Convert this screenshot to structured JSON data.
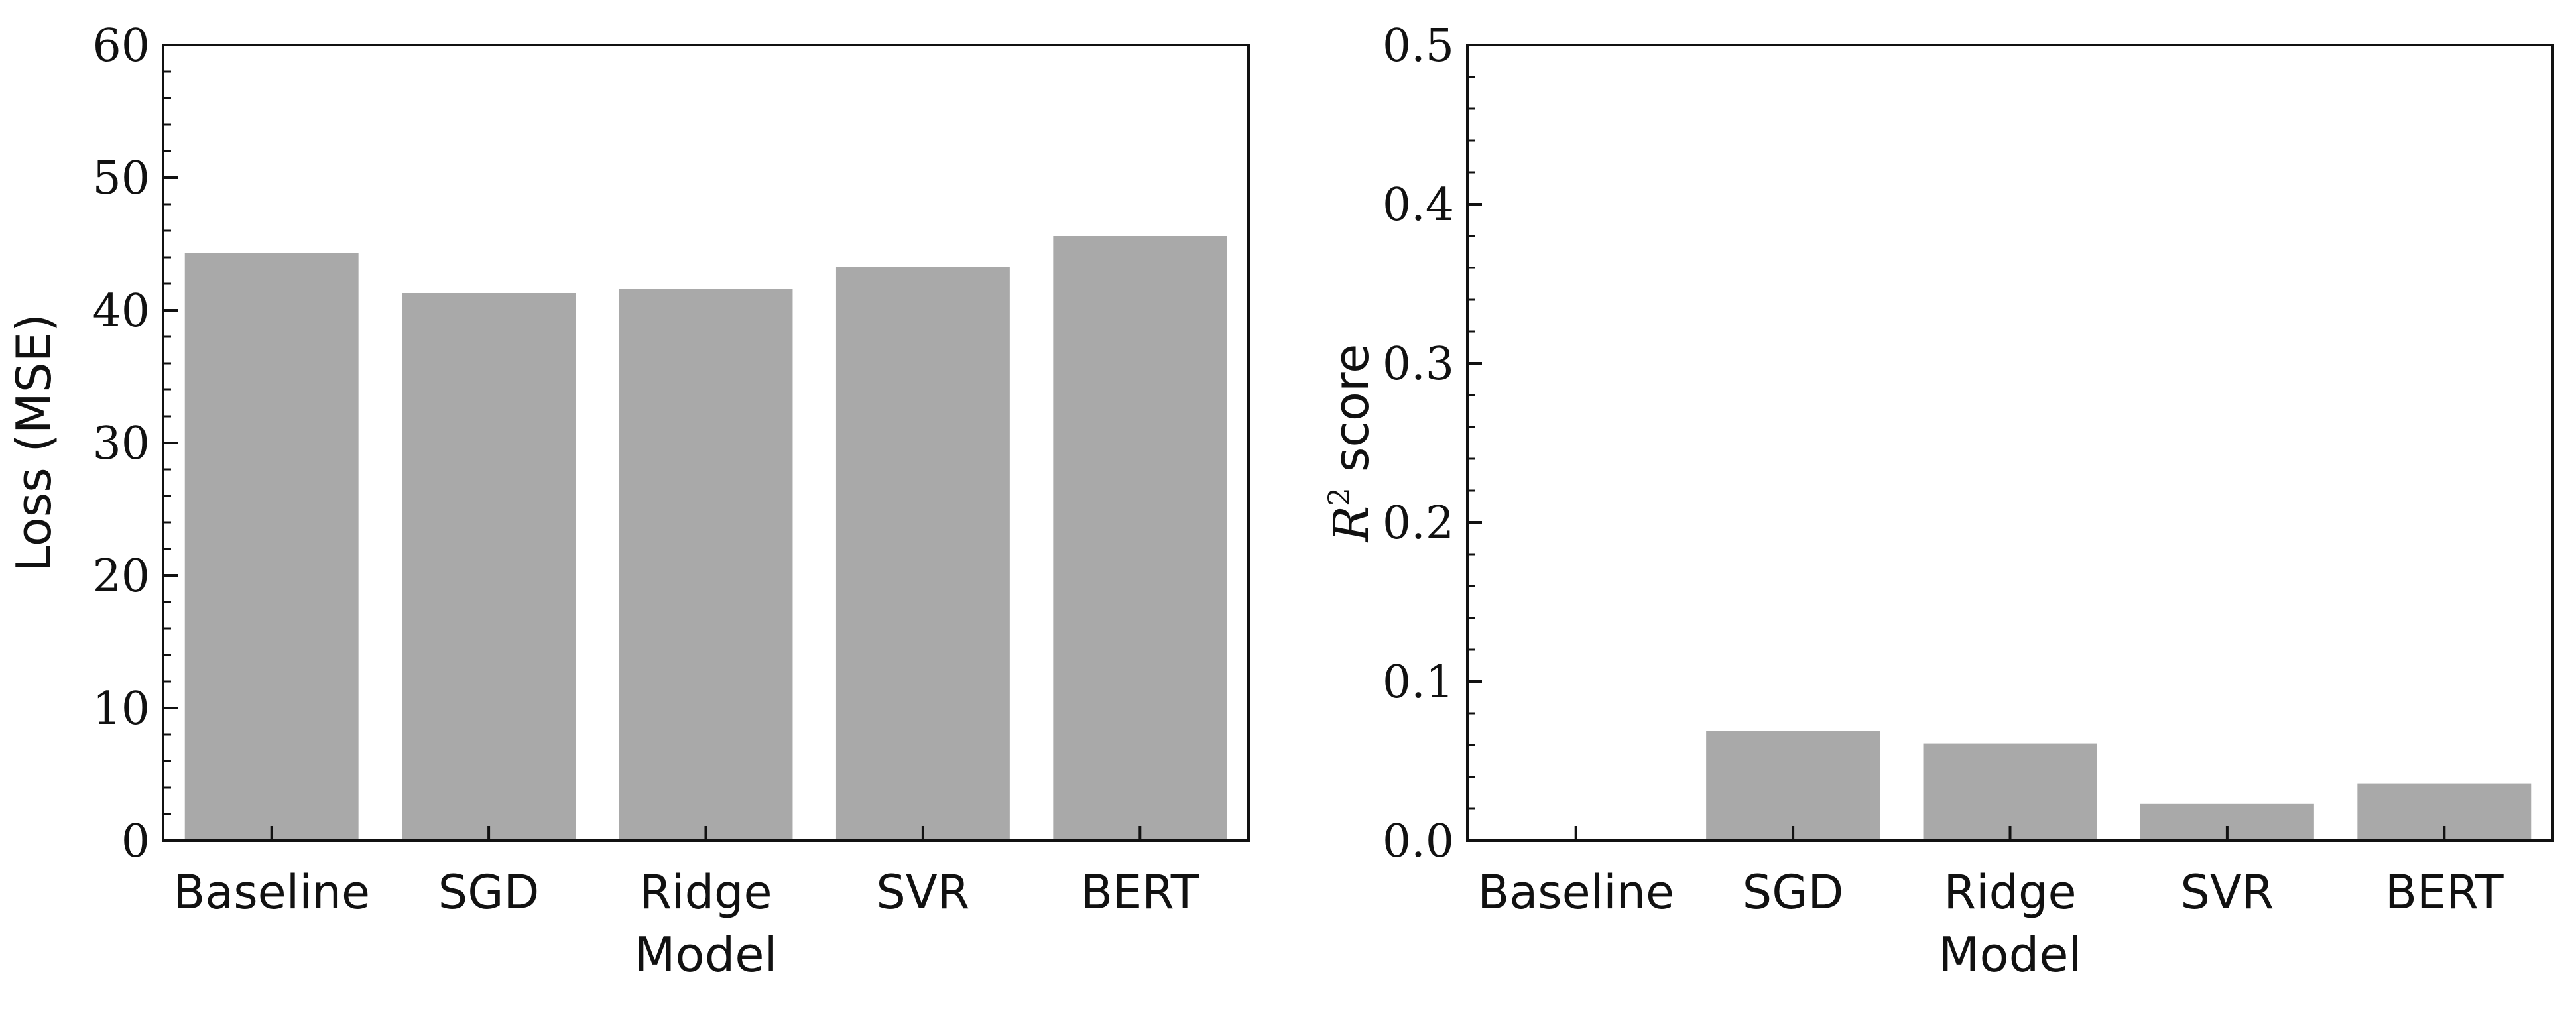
{
  "chart_data": [
    {
      "type": "bar",
      "categories": [
        "Baseline",
        "SGD",
        "Ridge",
        "SVR",
        "BERT"
      ],
      "values": [
        44.3,
        41.3,
        41.6,
        43.3,
        45.6
      ],
      "xlabel": "Model",
      "ylabel": "Loss (MSE)",
      "ylim": [
        0,
        60
      ],
      "yticks": [
        0,
        10,
        20,
        30,
        40,
        50,
        60
      ],
      "ytick_labels": [
        "0",
        "10",
        "20",
        "30",
        "40",
        "50",
        "60"
      ],
      "bar_color": "#a9a9a9",
      "grid": false
    },
    {
      "type": "bar",
      "categories": [
        "Baseline",
        "SGD",
        "Ridge",
        "SVR",
        "BERT"
      ],
      "values": [
        0.0,
        0.069,
        0.061,
        0.023,
        0.036
      ],
      "xlabel": "Model",
      "ylabel_main": "R",
      "ylabel_sup": "2",
      "ylabel_rest": " score",
      "ylim": [
        0,
        0.5
      ],
      "yticks": [
        0,
        0.1,
        0.2,
        0.3,
        0.4,
        0.5
      ],
      "ytick_labels": [
        "0.0",
        "0.1",
        "0.2",
        "0.3",
        "0.4",
        "0.5"
      ],
      "bar_color": "#a9a9a9",
      "grid": false
    }
  ]
}
